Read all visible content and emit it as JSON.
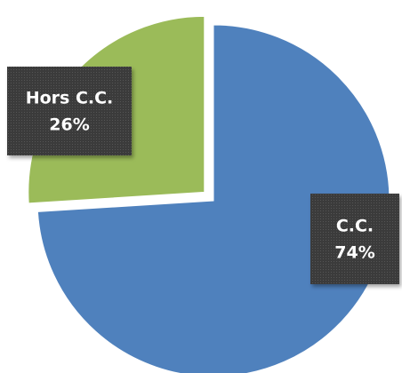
{
  "chart_data": {
    "type": "pie",
    "categories": [
      "C.C.",
      "Hors C.C."
    ],
    "values": [
      74,
      26
    ],
    "value_labels": [
      "74%",
      "26%"
    ],
    "colors": [
      "#4f81bd",
      "#9bbb59"
    ]
  }
}
